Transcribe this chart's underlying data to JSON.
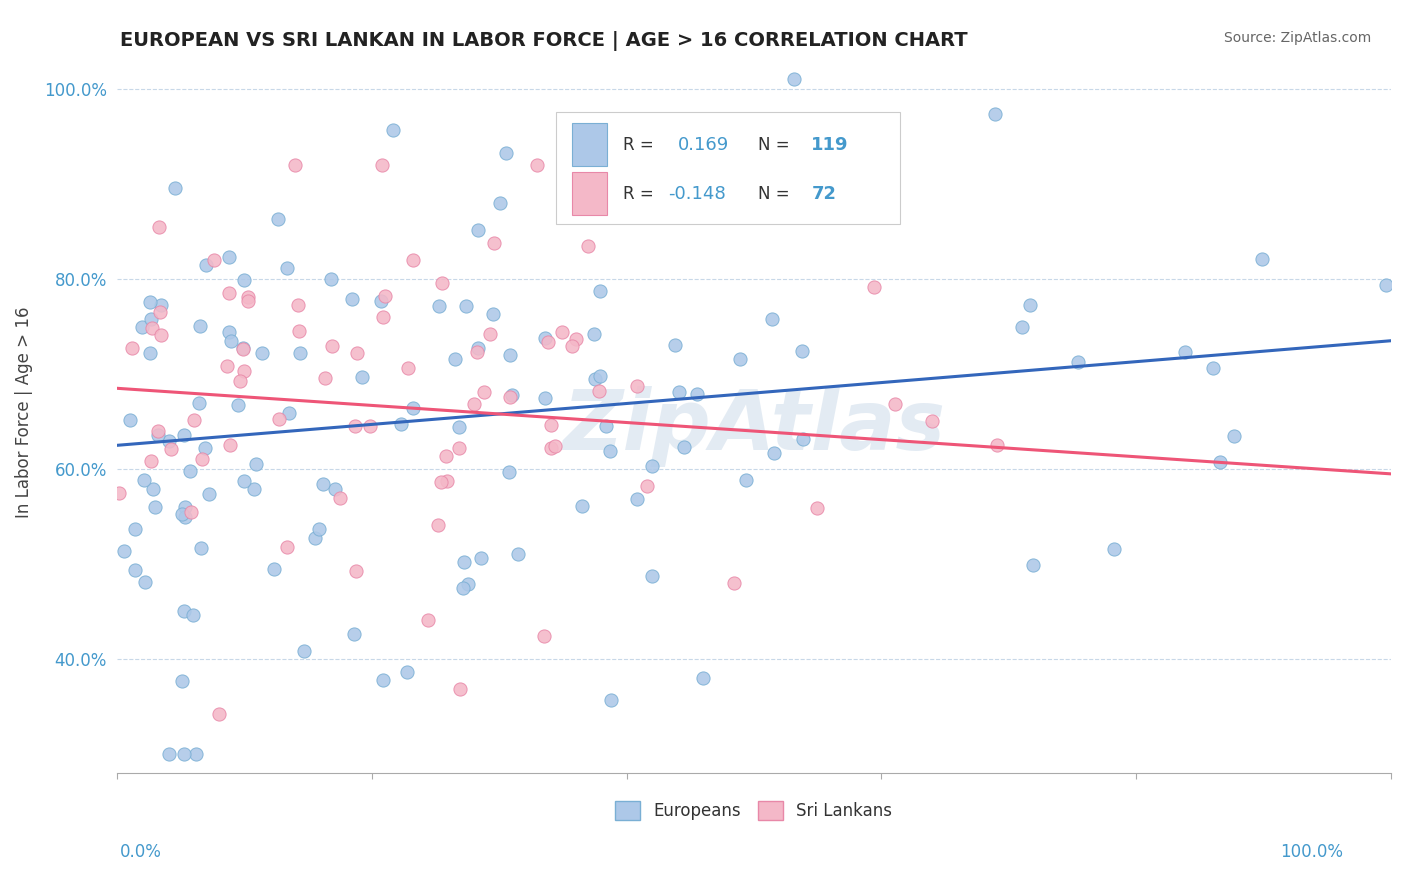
{
  "title": "EUROPEAN VS SRI LANKAN IN LABOR FORCE | AGE > 16 CORRELATION CHART",
  "source_text": "Source: ZipAtlas.com",
  "ylabel": "In Labor Force | Age > 16",
  "yticks": [
    "40.0%",
    "60.0%",
    "80.0%",
    "100.0%"
  ],
  "ytick_vals": [
    0.4,
    0.6,
    0.8,
    1.0
  ],
  "xlim": [
    0.0,
    1.0
  ],
  "ylim": [
    0.28,
    1.04
  ],
  "blue_color": "#adc8e8",
  "blue_edge": "#7aafd4",
  "pink_color": "#f4b8c8",
  "pink_edge": "#e888a8",
  "trend_blue": "#3366bb",
  "trend_pink": "#ee5577",
  "watermark": "ZipAtlas",
  "blue_trend_start": 0.625,
  "blue_trend_end": 0.735,
  "pink_trend_start": 0.685,
  "pink_trend_end": 0.595
}
